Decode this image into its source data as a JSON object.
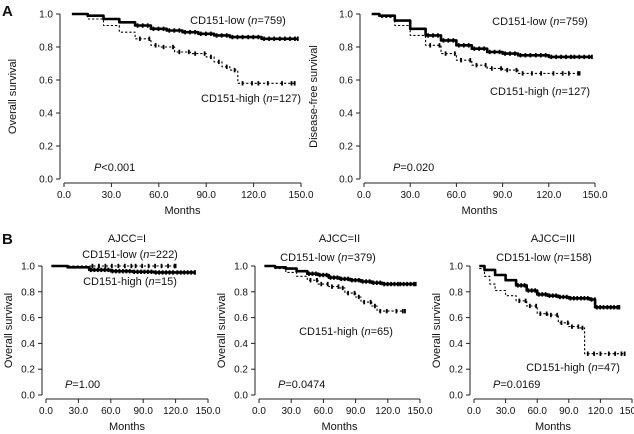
{
  "panel_labels": {
    "a": "A",
    "b": "B"
  },
  "chart_data": [
    {
      "id": "A1",
      "type": "line",
      "title": "",
      "xlabel": "Months",
      "ylabel": "Overall survival",
      "xlim": [
        0,
        150
      ],
      "ylim": [
        0,
        1
      ],
      "xticks": [
        0,
        30,
        60,
        90,
        120,
        150
      ],
      "xtick_labels": [
        "0.0",
        "30.0",
        "60.0",
        "90.0",
        "120.0",
        "150.0"
      ],
      "yticks": [
        0,
        0.2,
        0.4,
        0.6,
        0.8,
        1.0
      ],
      "ytick_labels": [
        "0.0",
        "0.2",
        "0.4",
        "0.6",
        "0.8",
        "1.0"
      ],
      "pvalue": "P<0.001",
      "series": [
        {
          "name": "CD151-low (n=759)",
          "label_name": "CD151-low",
          "label_n": "759",
          "style": "solid",
          "points": [
            [
              5,
              1.0
            ],
            [
              15,
              0.99
            ],
            [
              25,
              0.97
            ],
            [
              35,
              0.95
            ],
            [
              45,
              0.93
            ],
            [
              55,
              0.91
            ],
            [
              65,
              0.9
            ],
            [
              75,
              0.89
            ],
            [
              85,
              0.88
            ],
            [
              95,
              0.87
            ],
            [
              105,
              0.86
            ],
            [
              115,
              0.86
            ],
            [
              125,
              0.85
            ],
            [
              135,
              0.85
            ],
            [
              148,
              0.85
            ]
          ]
        },
        {
          "name": "CD151-high (n=127)",
          "label_name": "CD151-high",
          "label_n": "127",
          "style": "dotted",
          "points": [
            [
              5,
              1.0
            ],
            [
              15,
              0.97
            ],
            [
              25,
              0.93
            ],
            [
              35,
              0.89
            ],
            [
              45,
              0.85
            ],
            [
              55,
              0.81
            ],
            [
              60,
              0.8
            ],
            [
              70,
              0.77
            ],
            [
              80,
              0.76
            ],
            [
              90,
              0.74
            ],
            [
              95,
              0.71
            ],
            [
              100,
              0.68
            ],
            [
              105,
              0.66
            ],
            [
              110,
              0.58
            ],
            [
              120,
              0.58
            ],
            [
              135,
              0.58
            ],
            [
              146,
              0.58
            ]
          ]
        }
      ]
    },
    {
      "id": "A2",
      "type": "line",
      "title": "",
      "xlabel": "Months",
      "ylabel": "Disease-free survival",
      "xlim": [
        0,
        150
      ],
      "ylim": [
        0,
        1
      ],
      "xticks": [
        0,
        30,
        60,
        90,
        120,
        150
      ],
      "xtick_labels": [
        "0.0",
        "30.0",
        "60.0",
        "90.0",
        "120.0",
        "150.0"
      ],
      "yticks": [
        0,
        0.2,
        0.4,
        0.6,
        0.8,
        1.0
      ],
      "ytick_labels": [
        "0.0",
        "0.2",
        "0.4",
        "0.6",
        "0.8",
        "1.0"
      ],
      "pvalue": "P=0.020",
      "series": [
        {
          "name": "CD151-low (n=759)",
          "label_name": "CD151-low",
          "label_n": "759",
          "style": "solid",
          "points": [
            [
              5,
              1.0
            ],
            [
              10,
              0.99
            ],
            [
              20,
              0.96
            ],
            [
              30,
              0.91
            ],
            [
              40,
              0.87
            ],
            [
              50,
              0.84
            ],
            [
              60,
              0.81
            ],
            [
              70,
              0.79
            ],
            [
              80,
              0.77
            ],
            [
              90,
              0.76
            ],
            [
              100,
              0.75
            ],
            [
              110,
              0.75
            ],
            [
              120,
              0.74
            ],
            [
              135,
              0.74
            ],
            [
              148,
              0.74
            ]
          ]
        },
        {
          "name": "CD151-high (n=127)",
          "label_name": "CD151-high",
          "label_n": "127",
          "style": "dotted",
          "points": [
            [
              5,
              1.0
            ],
            [
              10,
              0.98
            ],
            [
              20,
              0.93
            ],
            [
              30,
              0.87
            ],
            [
              40,
              0.81
            ],
            [
              50,
              0.76
            ],
            [
              60,
              0.72
            ],
            [
              70,
              0.69
            ],
            [
              80,
              0.67
            ],
            [
              90,
              0.66
            ],
            [
              100,
              0.64
            ],
            [
              120,
              0.64
            ],
            [
              130,
              0.64
            ],
            [
              140,
              0.64
            ]
          ]
        }
      ]
    },
    {
      "id": "B1",
      "type": "line",
      "title": "AJCC=I",
      "xlabel": "Months",
      "ylabel": "Overall survival",
      "xlim": [
        0,
        150
      ],
      "ylim": [
        0,
        1
      ],
      "xticks": [
        0,
        30,
        60,
        90,
        120,
        150
      ],
      "xtick_labels": [
        "0.0",
        "30.0",
        "60.0",
        "90.0",
        "120.0",
        "150.0"
      ],
      "yticks": [
        0,
        0.2,
        0.4,
        0.6,
        0.8,
        1.0
      ],
      "ytick_labels": [
        "0.0",
        "0.2",
        "0.4",
        "0.6",
        "0.8",
        "1.0"
      ],
      "pvalue": "P=1.00",
      "series": [
        {
          "name": "CD151-low (n=222)",
          "label_name": "CD151-low",
          "label_n": "222",
          "style": "solid",
          "points": [
            [
              5,
              1.0
            ],
            [
              20,
              0.99
            ],
            [
              40,
              0.97
            ],
            [
              60,
              0.96
            ],
            [
              80,
              0.955
            ],
            [
              100,
              0.95
            ],
            [
              120,
              0.95
            ],
            [
              138,
              0.95
            ]
          ]
        },
        {
          "name": "CD151-high (n=15)",
          "label_name": "CD151-high",
          "label_n": "15",
          "style": "dotted",
          "points": [
            [
              5,
              1.0
            ],
            [
              40,
              1.0
            ],
            [
              80,
              1.0
            ],
            [
              120,
              1.0
            ]
          ]
        }
      ]
    },
    {
      "id": "B2",
      "type": "line",
      "title": "AJCC=II",
      "xlabel": "Months",
      "ylabel": "Overall survival",
      "xlim": [
        0,
        150
      ],
      "ylim": [
        0,
        1
      ],
      "xticks": [
        0,
        30,
        60,
        90,
        120,
        150
      ],
      "xtick_labels": [
        "0.0",
        "30.0",
        "60.0",
        "90.0",
        "120.0",
        "150.0"
      ],
      "yticks": [
        0,
        0.2,
        0.4,
        0.6,
        0.8,
        1.0
      ],
      "ytick_labels": [
        "0.0",
        "0.2",
        "0.4",
        "0.6",
        "0.8",
        "1.0"
      ],
      "pvalue": "P=0.0474",
      "series": [
        {
          "name": "CD151-low (n=379)",
          "label_name": "CD151-low",
          "label_n": "379",
          "style": "solid",
          "points": [
            [
              5,
              1.0
            ],
            [
              15,
              0.99
            ],
            [
              25,
              0.98
            ],
            [
              35,
              0.96
            ],
            [
              45,
              0.94
            ],
            [
              55,
              0.93
            ],
            [
              65,
              0.91
            ],
            [
              75,
              0.9
            ],
            [
              85,
              0.89
            ],
            [
              95,
              0.88
            ],
            [
              105,
              0.87
            ],
            [
              115,
              0.86
            ],
            [
              130,
              0.86
            ],
            [
              146,
              0.86
            ]
          ]
        },
        {
          "name": "CD151-high (n=65)",
          "label_name": "CD151-high",
          "label_n": "65",
          "style": "dotted",
          "points": [
            [
              5,
              1.0
            ],
            [
              15,
              0.98
            ],
            [
              25,
              0.95
            ],
            [
              35,
              0.92
            ],
            [
              45,
              0.89
            ],
            [
              55,
              0.86
            ],
            [
              65,
              0.84
            ],
            [
              75,
              0.83
            ],
            [
              80,
              0.79
            ],
            [
              90,
              0.76
            ],
            [
              95,
              0.72
            ],
            [
              105,
              0.69
            ],
            [
              110,
              0.65
            ],
            [
              125,
              0.65
            ],
            [
              136,
              0.65
            ]
          ]
        }
      ]
    },
    {
      "id": "B3",
      "type": "line",
      "title": "AJCC=III",
      "xlabel": "Months",
      "ylabel": "Overall survival",
      "xlim": [
        0,
        150
      ],
      "ylim": [
        0,
        1
      ],
      "xticks": [
        0,
        30,
        60,
        90,
        120,
        150
      ],
      "xtick_labels": [
        "0.0",
        "30.0",
        "60.0",
        "90.0",
        "120.0",
        "150.0"
      ],
      "yticks": [
        0,
        0.2,
        0.4,
        0.6,
        0.8,
        1.0
      ],
      "ytick_labels": [
        "0.0",
        "0.2",
        "0.4",
        "0.6",
        "0.8",
        "1.0"
      ],
      "pvalue": "P=0.0169",
      "series": [
        {
          "name": "CD151-low (n=158)",
          "label_name": "CD151-low",
          "label_n": "158",
          "style": "solid",
          "points": [
            [
              5,
              1.0
            ],
            [
              10,
              0.97
            ],
            [
              20,
              0.93
            ],
            [
              30,
              0.89
            ],
            [
              40,
              0.85
            ],
            [
              50,
              0.81
            ],
            [
              60,
              0.78
            ],
            [
              70,
              0.77
            ],
            [
              80,
              0.76
            ],
            [
              90,
              0.75
            ],
            [
              100,
              0.75
            ],
            [
              110,
              0.74
            ],
            [
              115,
              0.68
            ],
            [
              125,
              0.68
            ],
            [
              138,
              0.68
            ]
          ]
        },
        {
          "name": "CD151-high (n=47)",
          "label_name": "CD151-high",
          "label_n": "47",
          "style": "dotted",
          "points": [
            [
              5,
              0.98
            ],
            [
              10,
              0.92
            ],
            [
              15,
              0.86
            ],
            [
              20,
              0.81
            ],
            [
              30,
              0.77
            ],
            [
              40,
              0.73
            ],
            [
              50,
              0.69
            ],
            [
              60,
              0.63
            ],
            [
              70,
              0.62
            ],
            [
              80,
              0.56
            ],
            [
              90,
              0.53
            ],
            [
              100,
              0.52
            ],
            [
              105,
              0.32
            ],
            [
              125,
              0.32
            ],
            [
              143,
              0.32
            ]
          ]
        }
      ]
    }
  ]
}
